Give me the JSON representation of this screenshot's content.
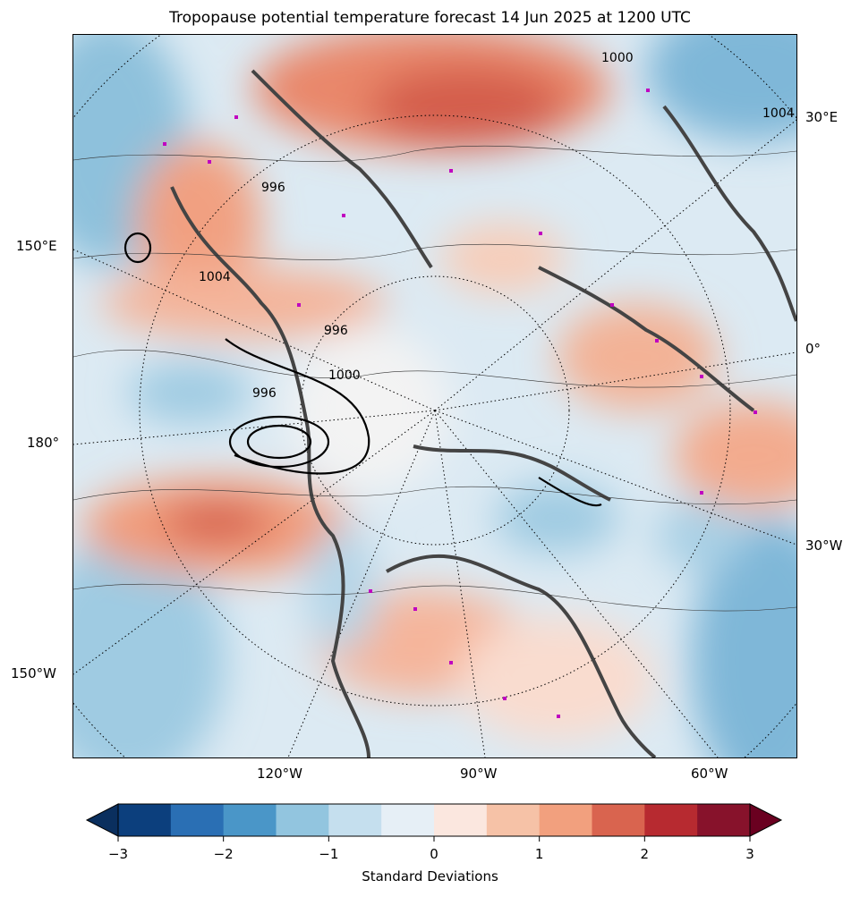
{
  "title": "Tropopause potential temperature forecast 14 Jun 2025 at 1200 UTC",
  "map": {
    "lon_labels_bottom": [
      "120°W",
      "90°W",
      "60°W"
    ],
    "lon_labels_left": [
      "150°E",
      "180°",
      "150°W"
    ],
    "lon_labels_right": [
      "30°E",
      "0°",
      "30°W"
    ],
    "contour_labels": [
      "996",
      "1000",
      "1004",
      "996",
      "1000",
      "1004",
      "996"
    ],
    "colors": {
      "neg3": "#0e4480",
      "neg2": "#2a6fb4",
      "neg1": "#94c4df",
      "zero": "#f7f7f7",
      "pos1": "#f4a582",
      "pos2": "#d6604d",
      "pos3": "#8a1427",
      "coast": "#444444",
      "stations": "#c000c0"
    }
  },
  "colorbar": {
    "label": "Standard Deviations",
    "ticks": [
      "−3",
      "−2",
      "−1",
      "0",
      "1",
      "2",
      "3"
    ],
    "tick_values": [
      -3,
      -2,
      -1,
      0,
      1,
      2,
      3
    ],
    "range": [
      -3,
      3
    ],
    "step": 0.5,
    "colors": [
      "#0c3f7d",
      "#2a6fb4",
      "#4a96c8",
      "#92c5df",
      "#c5dfee",
      "#e6eff6",
      "#fbe7df",
      "#f6c2a7",
      "#f2a07e",
      "#d9644f",
      "#b72a30",
      "#87122b"
    ],
    "under_color": "#0a2f5e",
    "over_color": "#6a0020"
  }
}
